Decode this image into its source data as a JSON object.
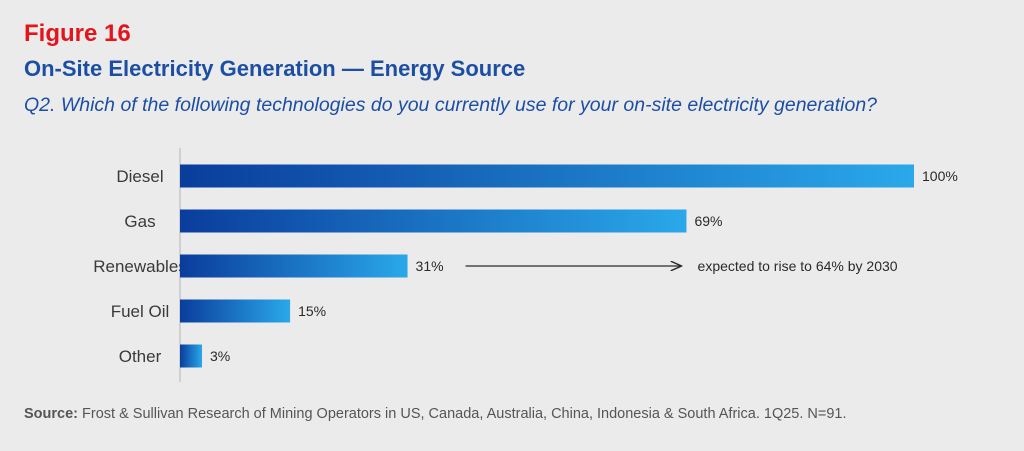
{
  "figure_label": "Figure 16",
  "title": "On-Site Electricity Generation — Energy Source",
  "question": "Q2. Which of the following technologies do you currently use for your on-site electricity generation?",
  "source": {
    "prefix": "Source:",
    "text": "Frost & Sullivan Research of Mining Operators in US, Canada, Australia, China, Indonesia & South Africa. 1Q25. N=91."
  },
  "colors": {
    "figure_label": "#e4141b",
    "title": "#1c4fa4",
    "bar_dark": "#0a3d9c",
    "bar_light": "#2aa8ea",
    "background": "#ebebeb"
  },
  "chart_data": {
    "type": "bar",
    "orientation": "horizontal",
    "categories": [
      "Diesel",
      "Gas",
      "Renewables",
      "Fuel Oil",
      "Other"
    ],
    "values": [
      100,
      69,
      31,
      15,
      3
    ],
    "value_labels": [
      "100%",
      "69%",
      "31%",
      "15%",
      "3%"
    ],
    "unit": "%",
    "xlim": [
      0,
      100
    ],
    "grid": false,
    "annotation": {
      "category": "Renewables",
      "text": "expected to rise to 64% by 2030"
    }
  }
}
